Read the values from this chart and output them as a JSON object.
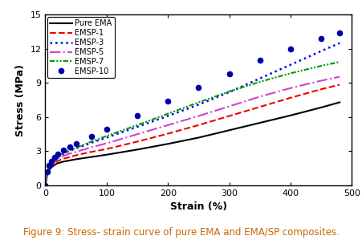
{
  "xlabel": "Strain (%)",
  "ylabel": "Stress (MPa)",
  "caption": "Figure 9: Stress- strain curve of pure EMA and EMA/SP composites.",
  "xlim": [
    0,
    500
  ],
  "ylim": [
    0,
    15
  ],
  "xticks": [
    0,
    100,
    200,
    300,
    400,
    500
  ],
  "yticks": [
    0,
    3,
    6,
    9,
    12,
    15
  ],
  "series": [
    {
      "label": "Pure EMA",
      "color": "#000000",
      "linestyle": "-",
      "linewidth": 1.5,
      "marker": "none",
      "x": [
        0,
        3,
        6,
        10,
        15,
        20,
        30,
        40,
        50,
        75,
        100,
        150,
        200,
        250,
        300,
        350,
        400,
        450,
        480
      ],
      "y": [
        0,
        0.9,
        1.35,
        1.6,
        1.8,
        1.95,
        2.1,
        2.2,
        2.3,
        2.5,
        2.7,
        3.15,
        3.65,
        4.2,
        4.85,
        5.5,
        6.15,
        6.85,
        7.3
      ]
    },
    {
      "label": "EMSP-1",
      "color": "#ee0000",
      "linestyle": "--",
      "linewidth": 1.5,
      "marker": "none",
      "x": [
        0,
        3,
        6,
        10,
        15,
        20,
        30,
        40,
        50,
        75,
        100,
        150,
        200,
        250,
        300,
        350,
        400,
        450,
        480
      ],
      "y": [
        0,
        1.0,
        1.5,
        1.75,
        2.0,
        2.15,
        2.35,
        2.5,
        2.65,
        2.95,
        3.2,
        3.85,
        4.55,
        5.3,
        6.1,
        6.9,
        7.7,
        8.45,
        8.85
      ]
    },
    {
      "label": "EMSP-3",
      "color": "#0000ee",
      "linestyle": ":",
      "linewidth": 1.8,
      "marker": "none",
      "x": [
        0,
        3,
        6,
        10,
        15,
        20,
        30,
        40,
        50,
        75,
        100,
        150,
        200,
        250,
        300,
        350,
        400,
        450,
        480
      ],
      "y": [
        0,
        1.1,
        1.65,
        2.0,
        2.3,
        2.5,
        2.8,
        3.05,
        3.25,
        3.75,
        4.2,
        5.15,
        6.1,
        7.1,
        8.2,
        9.4,
        10.6,
        11.8,
        12.5
      ]
    },
    {
      "label": "EMSP-5",
      "color": "#cc44cc",
      "linestyle": "-.",
      "linewidth": 1.5,
      "marker": "none",
      "x": [
        0,
        3,
        6,
        10,
        15,
        20,
        30,
        40,
        50,
        75,
        100,
        150,
        200,
        250,
        300,
        350,
        400,
        450,
        480
      ],
      "y": [
        0,
        1.05,
        1.6,
        1.9,
        2.15,
        2.35,
        2.6,
        2.8,
        2.95,
        3.35,
        3.7,
        4.5,
        5.3,
        6.1,
        6.95,
        7.8,
        8.55,
        9.2,
        9.55
      ]
    },
    {
      "label": "EMSP-7",
      "color": "#009900",
      "linestyle": "dashdotdot",
      "linewidth": 1.5,
      "marker": "none",
      "x": [
        0,
        3,
        6,
        10,
        15,
        20,
        30,
        40,
        50,
        75,
        100,
        150,
        200,
        250,
        300,
        350,
        400,
        450,
        480
      ],
      "y": [
        0,
        1.15,
        1.7,
        2.05,
        2.35,
        2.55,
        2.85,
        3.1,
        3.3,
        3.85,
        4.35,
        5.3,
        6.3,
        7.3,
        8.25,
        9.1,
        9.85,
        10.5,
        10.85
      ]
    },
    {
      "label": "EMSP-10",
      "color": "#0000aa",
      "linestyle": "none",
      "linewidth": 0,
      "marker": "o",
      "markersize": 4.5,
      "x": [
        0,
        3,
        6,
        10,
        15,
        20,
        30,
        40,
        50,
        75,
        100,
        150,
        200,
        250,
        300,
        350,
        400,
        450,
        480
      ],
      "y": [
        0,
        1.2,
        1.8,
        2.15,
        2.5,
        2.75,
        3.1,
        3.4,
        3.65,
        4.3,
        4.95,
        6.15,
        7.4,
        8.6,
        9.8,
        11.0,
        12.0,
        12.9,
        13.4
      ]
    }
  ],
  "legend_fontsize": 7.0,
  "axis_label_fontsize": 9,
  "tick_fontsize": 8,
  "caption_fontsize": 8.5,
  "caption_color": "#cc6600"
}
